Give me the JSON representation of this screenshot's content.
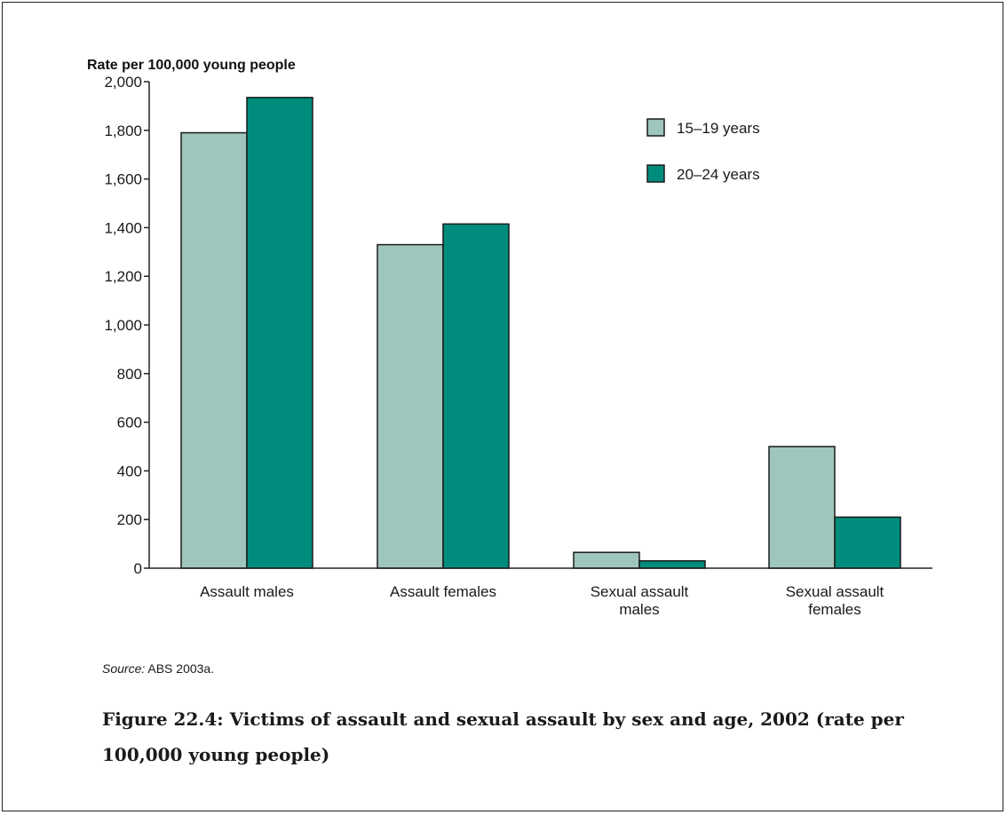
{
  "chart_data": {
    "type": "bar",
    "ylabel": "Rate per 100,000 young people",
    "ylim": [
      0,
      2000
    ],
    "yticks": [
      "0",
      "200",
      "400",
      "600",
      "800",
      "1,000",
      "1,200",
      "1,400",
      "1,600",
      "1,800",
      "2,000"
    ],
    "ytick_values": [
      0,
      200,
      400,
      600,
      800,
      1000,
      1200,
      1400,
      1600,
      1800,
      2000
    ],
    "categories": [
      [
        "Assault males"
      ],
      [
        "Assault females"
      ],
      [
        "Sexual assault",
        "males"
      ],
      [
        "Sexual assault",
        "females"
      ]
    ],
    "series": [
      {
        "name": "15–19 years",
        "color": "#9fc6bd",
        "values": [
          1790,
          1330,
          65,
          500
        ]
      },
      {
        "name": "20–24 years",
        "color": "#008c7c",
        "values": [
          1935,
          1415,
          30,
          210
        ]
      }
    ],
    "legend": "top-right",
    "grid": false
  },
  "source": {
    "label": "Source:",
    "text": "ABS 2003a."
  },
  "caption": "Figure 22.4: Victims of assault and sexual assault by sex and age, 2002 (rate per 100,000 young people)"
}
